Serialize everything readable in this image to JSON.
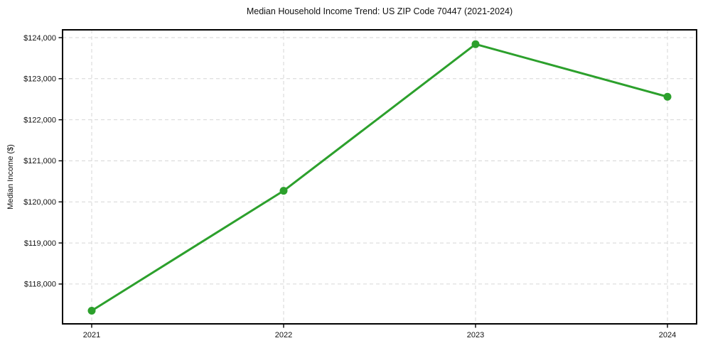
{
  "chart_data": {
    "type": "line",
    "title": "Median Household Income Trend: US ZIP Code 70447 (2021-2024)",
    "xlabel": "",
    "ylabel": "Median Income ($)",
    "x": [
      2021,
      2022,
      2023,
      2024
    ],
    "xtick_labels": [
      "2021",
      "2022",
      "2023",
      "2024"
    ],
    "series": [
      {
        "name": "Median household income",
        "values": [
          117350,
          120270,
          123840,
          122560
        ]
      }
    ],
    "ytick_values": [
      118000,
      119000,
      120000,
      121000,
      122000,
      123000,
      124000
    ],
    "ytick_labels": [
      "$118,000",
      "$119,000",
      "$120,000",
      "$121,000",
      "$122,000",
      "$123,000",
      "$124,000"
    ],
    "ylim": [
      117030,
      124190
    ],
    "grid": true,
    "grid_style": "dashed",
    "legend_position": "none",
    "line_color": "#2ca02c",
    "marker": "circle",
    "grid_color": "#d6d6d6"
  }
}
